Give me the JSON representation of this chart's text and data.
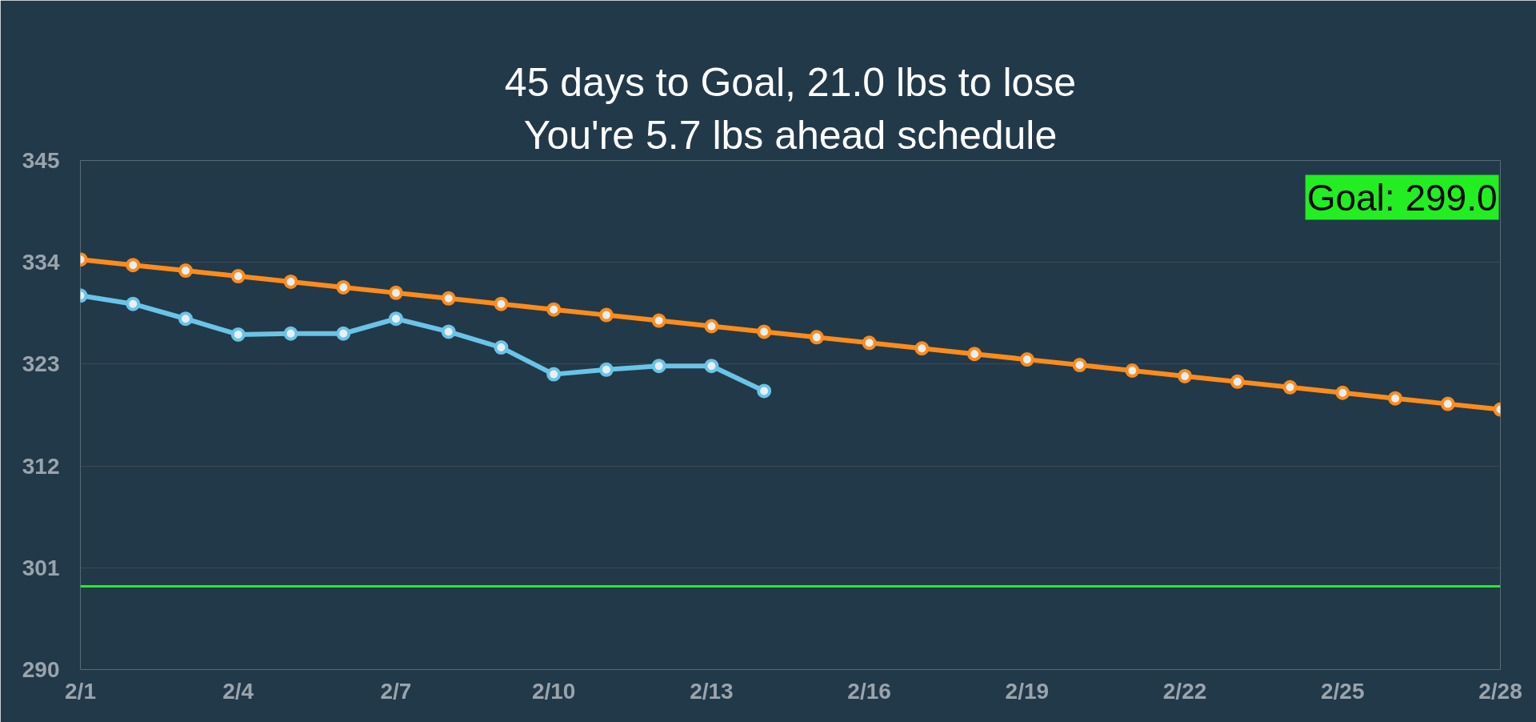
{
  "chart_data": {
    "type": "line",
    "title": "45 days to Goal, 21.0 lbs to lose",
    "subtitle": "You're 5.7 lbs ahead schedule",
    "categories": [
      "2/1",
      null,
      null,
      "2/4",
      null,
      null,
      "2/7",
      null,
      null,
      "2/10",
      null,
      null,
      "2/13",
      null,
      null,
      "2/16",
      null,
      null,
      "2/19",
      null,
      null,
      "2/22",
      null,
      null,
      "2/25",
      null,
      null,
      "2/28"
    ],
    "series": [
      {
        "color": "#ff8c1a",
        "values": [
          334.3,
          333.7,
          333.1,
          332.5,
          331.9,
          331.3,
          330.7,
          330.1,
          329.5,
          328.9,
          328.3,
          327.7,
          327.1,
          326.5,
          325.9,
          325.3,
          324.7,
          324.1,
          323.5,
          322.9,
          322.3,
          321.7,
          321.1,
          320.5,
          319.9,
          319.3,
          318.7,
          318.1
        ]
      },
      {
        "color": "#6ac4e8",
        "values": [
          330.4,
          329.5,
          327.9,
          326.2,
          326.3,
          326.3,
          327.9,
          326.5,
          324.8,
          321.9,
          322.4,
          322.8,
          322.8,
          320.1,
          null,
          null,
          null,
          null,
          null,
          null,
          null,
          null,
          null,
          null,
          null,
          null,
          null,
          null
        ]
      }
    ],
    "ylim": [
      290,
      345
    ],
    "yticks": [
      290,
      301,
      312,
      323,
      334,
      345
    ],
    "grid": "y",
    "marker": "circle",
    "line_style": "solid",
    "annotations": [
      "Goal: 299.0"
    ],
    "ref_lines": [
      {
        "axis": "y",
        "value": 299.0,
        "color": "#22ee22"
      }
    ]
  }
}
